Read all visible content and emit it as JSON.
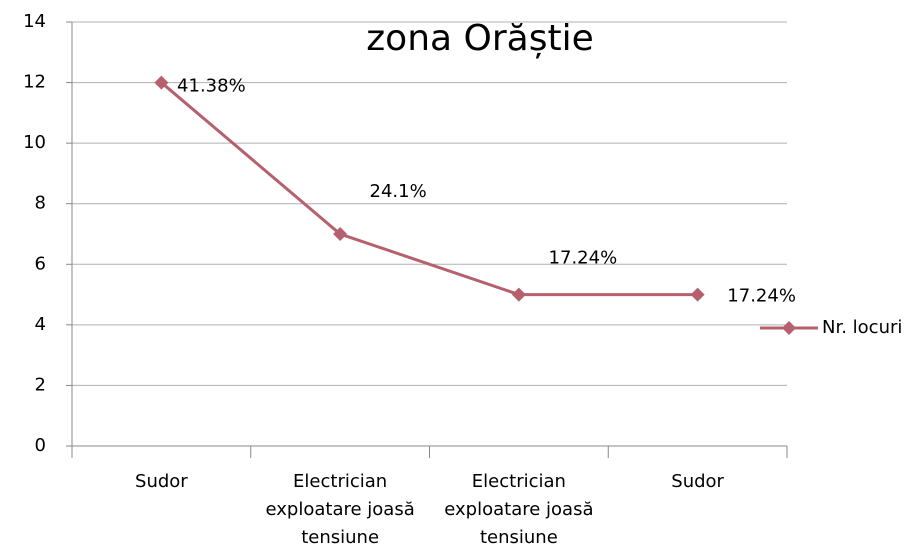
{
  "chart_data": {
    "type": "line",
    "title": "zona Orăștie",
    "categories": [
      "Sudor",
      "Electrician exploatare joasă tensiune",
      "Electrician exploatare joasă tensiune",
      "Sudor"
    ],
    "series": [
      {
        "name": "Nr. locuri",
        "color": "#b5606c",
        "values": [
          12,
          7,
          5,
          5
        ],
        "value_labels": [
          "41.38%",
          "24.1%",
          "17.24%",
          "17.24%"
        ]
      }
    ],
    "ylim": [
      0,
      14
    ],
    "yticks": [
      0,
      2,
      4,
      6,
      8,
      10,
      12,
      14
    ],
    "grid": true,
    "legend": "right"
  }
}
